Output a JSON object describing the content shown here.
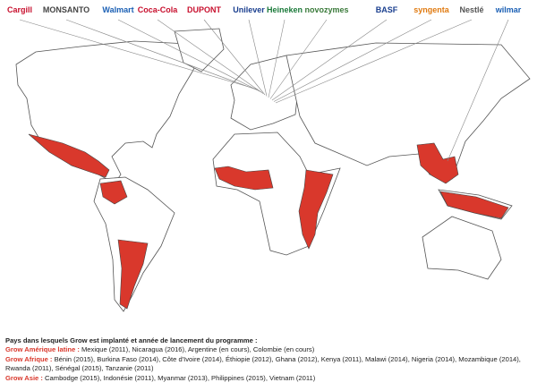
{
  "logos": [
    "Cargill",
    "MONSANTO",
    "Walmart",
    "Coca-Cola",
    "DUPONT",
    "Unilever",
    "Heineken",
    "novozymes",
    "BASF",
    "syngenta",
    "Nestlé",
    "wilmar"
  ],
  "legend": {
    "heading": "Pays dans lesquels Grow est implanté et année de lancement du programme :",
    "regions": [
      {
        "label": "Grow Amérique latine :",
        "text": "Mexique (2011), Nicaragua (2016), Argentine (en cours), Colombie (en cours)"
      },
      {
        "label": "Grow Afrique :",
        "text": "Bénin (2015), Burkina Faso (2014), Côte d'Ivoire (2014), Éthiopie (2012), Ghana (2012), Kenya (2011), Malawi (2014), Nigeria (2014), Mozambique (2014), Rwanda (2011), Sénégal (2015), Tanzanie (2011)"
      },
      {
        "label": "Grow Asie :",
        "text": "Cambodge (2015), Indonésie (2011), Myanmar (2013), Philippines (2015), Vietnam (2011)"
      }
    ]
  }
}
